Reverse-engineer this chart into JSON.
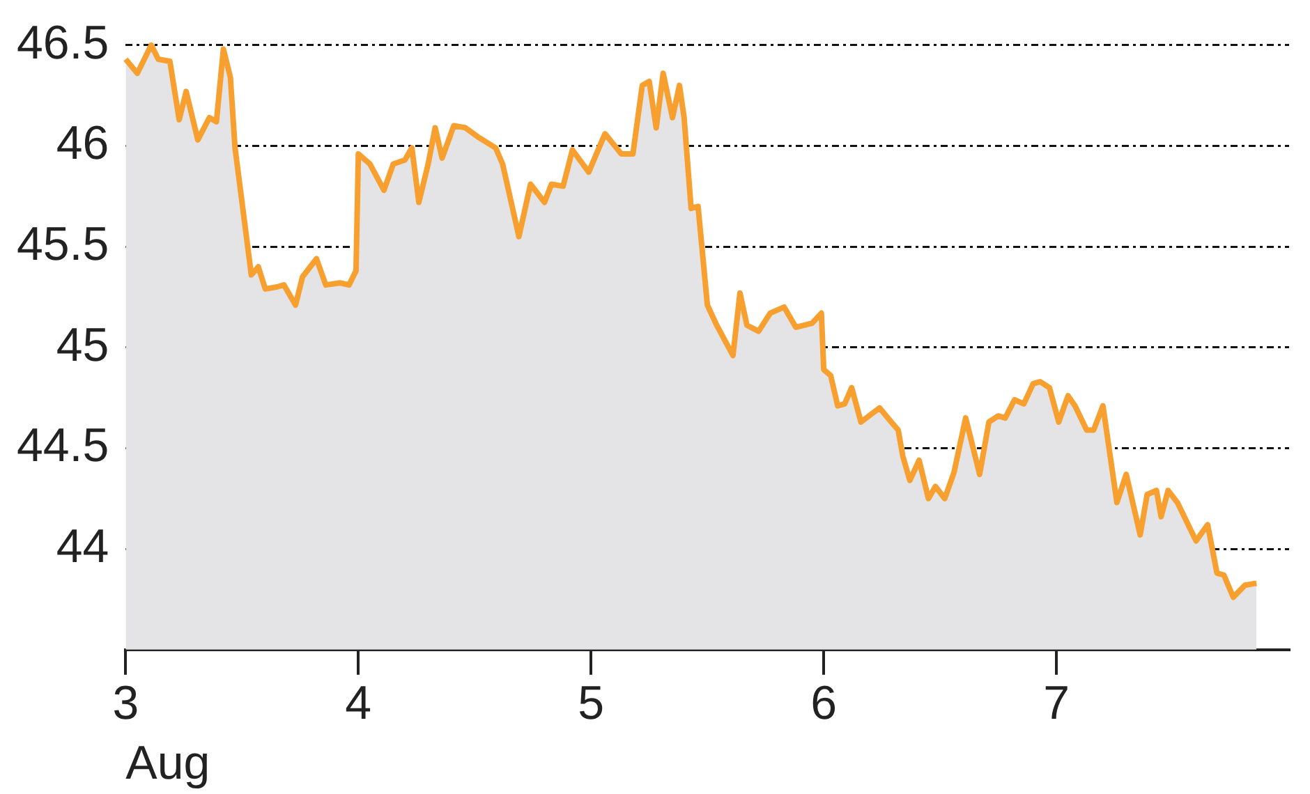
{
  "chart_data": {
    "type": "area",
    "xlabel": "Aug",
    "x": [
      3.0,
      3.05,
      3.11,
      3.14,
      3.19,
      3.23,
      3.26,
      3.31,
      3.36,
      3.39,
      3.42,
      3.45,
      3.47,
      3.54,
      3.57,
      3.6,
      3.65,
      3.68,
      3.73,
      3.76,
      3.82,
      3.86,
      3.92,
      3.96,
      3.99,
      4.0,
      4.05,
      4.11,
      4.15,
      4.2,
      4.23,
      4.26,
      4.3,
      4.33,
      4.36,
      4.41,
      4.46,
      4.52,
      4.59,
      4.62,
      4.69,
      4.74,
      4.8,
      4.83,
      4.88,
      4.92,
      4.99,
      5.06,
      5.13,
      5.18,
      5.22,
      5.25,
      5.28,
      5.31,
      5.35,
      5.38,
      5.4,
      5.43,
      5.46,
      5.5,
      5.54,
      5.61,
      5.64,
      5.67,
      5.72,
      5.77,
      5.83,
      5.88,
      5.95,
      5.99,
      6.0,
      6.03,
      6.06,
      6.09,
      6.12,
      6.16,
      6.24,
      6.29,
      6.32,
      6.34,
      6.37,
      6.41,
      6.45,
      6.48,
      6.52,
      6.56,
      6.61,
      6.67,
      6.71,
      6.75,
      6.78,
      6.82,
      6.86,
      6.9,
      6.93,
      6.97,
      7.01,
      7.05,
      7.08,
      7.13,
      7.16,
      7.2,
      7.26,
      7.3,
      7.36,
      7.39,
      7.43,
      7.45,
      7.48,
      7.52,
      7.6,
      7.65,
      7.69,
      7.72,
      7.76,
      7.81,
      7.86
    ],
    "series": [
      {
        "color": "#f7a030",
        "values": [
          46.43,
          46.36,
          46.5,
          46.43,
          46.42,
          46.13,
          46.27,
          46.03,
          46.14,
          46.12,
          46.48,
          46.34,
          45.99,
          45.36,
          45.4,
          45.29,
          45.3,
          45.31,
          45.21,
          45.35,
          45.44,
          45.31,
          45.32,
          45.31,
          45.38,
          45.96,
          45.91,
          45.78,
          45.91,
          45.93,
          45.99,
          45.72,
          45.91,
          46.09,
          45.94,
          46.1,
          46.09,
          46.04,
          45.99,
          45.91,
          45.55,
          45.81,
          45.72,
          45.81,
          45.8,
          45.98,
          45.87,
          46.06,
          45.96,
          45.96,
          46.3,
          46.32,
          46.09,
          46.36,
          46.14,
          46.3,
          46.14,
          45.69,
          45.7,
          45.21,
          45.11,
          44.96,
          45.27,
          45.11,
          45.08,
          45.17,
          45.2,
          45.1,
          45.12,
          45.17,
          44.89,
          44.86,
          44.71,
          44.72,
          44.8,
          44.63,
          44.7,
          44.63,
          44.59,
          44.46,
          44.34,
          44.44,
          44.25,
          44.31,
          44.25,
          44.38,
          44.65,
          44.37,
          44.63,
          44.66,
          44.65,
          44.74,
          44.72,
          44.82,
          44.83,
          44.8,
          44.63,
          44.76,
          44.71,
          44.59,
          44.59,
          44.71,
          44.23,
          44.37,
          44.07,
          44.27,
          44.29,
          44.16,
          44.29,
          44.23,
          44.04,
          44.12,
          43.88,
          43.87,
          43.76,
          43.82,
          43.83
        ]
      }
    ],
    "xlim": [
      3,
      8
    ],
    "xticks": [
      3,
      4,
      5,
      6,
      7
    ],
    "ylim": [
      43.5,
      46.5
    ],
    "yticks": [
      44,
      44.5,
      45,
      45.5,
      46,
      46.5
    ],
    "grid": "y",
    "legend": false
  }
}
